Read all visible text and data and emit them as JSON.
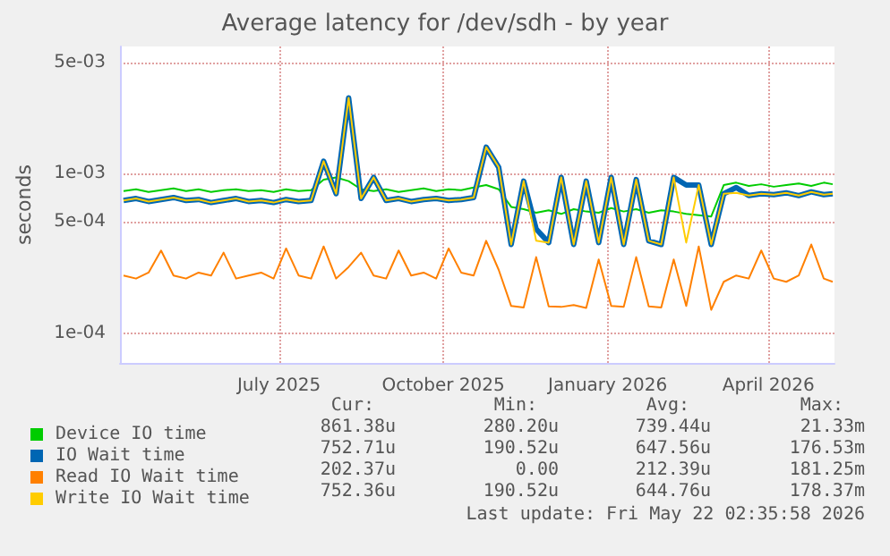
{
  "chart_data": {
    "type": "line",
    "title": "Average latency for /dev/sdh - by year",
    "ylabel": "seconds",
    "log": "y",
    "grid": true,
    "legend": "bottom left",
    "marker": "none",
    "line_style": "solid",
    "xlim": [
      "2025-04-17",
      "2026-05-22"
    ],
    "xticks": [
      {
        "value": "2025-07-15",
        "label": "July 2025"
      },
      {
        "value": "2025-10-15",
        "label": "October 2025"
      },
      {
        "value": "2026-01-15",
        "label": "January 2026"
      },
      {
        "value": "2026-04-15",
        "label": "April 2026"
      }
    ],
    "ylim": [
      6.5e-05,
      0.0063
    ],
    "yticks": [
      {
        "value": 0.0001,
        "label": "1e-04"
      },
      {
        "value": 0.0005,
        "label": "5e-04"
      },
      {
        "value": 0.001,
        "label": "1e-03"
      },
      {
        "value": 0.005,
        "label": "5e-03"
      }
    ],
    "x": [
      "2025-04-19",
      "2025-04-26",
      "2025-05-03",
      "2025-05-10",
      "2025-05-17",
      "2025-05-24",
      "2025-05-31",
      "2025-06-07",
      "2025-06-14",
      "2025-06-21",
      "2025-06-28",
      "2025-07-05",
      "2025-07-12",
      "2025-07-19",
      "2025-07-26",
      "2025-08-02",
      "2025-08-09",
      "2025-08-16",
      "2025-08-23",
      "2025-08-30",
      "2025-09-06",
      "2025-09-13",
      "2025-09-20",
      "2025-09-27",
      "2025-10-04",
      "2025-10-11",
      "2025-10-18",
      "2025-10-25",
      "2025-11-01",
      "2025-11-08",
      "2025-11-15",
      "2025-11-22",
      "2025-11-29",
      "2025-12-06",
      "2025-12-13",
      "2025-12-20",
      "2025-12-27",
      "2026-01-03",
      "2026-01-10",
      "2026-01-17",
      "2026-01-24",
      "2026-01-31",
      "2026-02-07",
      "2026-02-14",
      "2026-02-21",
      "2026-02-28",
      "2026-03-07",
      "2026-03-14",
      "2026-03-21",
      "2026-03-28",
      "2026-04-04",
      "2026-04-11",
      "2026-04-18",
      "2026-04-25",
      "2026-05-02",
      "2026-05-09",
      "2026-05-16",
      "2026-05-21"
    ],
    "series": [
      {
        "name": "Device IO time",
        "color": "#00cc00",
        "values": [
          0.00078,
          0.0008,
          0.00077,
          0.00079,
          0.00081,
          0.00078,
          0.0008,
          0.00077,
          0.00079,
          0.0008,
          0.00078,
          0.00079,
          0.00077,
          0.0008,
          0.00078,
          0.00079,
          0.00092,
          0.00095,
          0.0009,
          0.0008,
          0.00078,
          0.0008,
          0.00077,
          0.00079,
          0.00081,
          0.00078,
          0.0008,
          0.00079,
          0.00082,
          0.00085,
          0.0008,
          0.00062,
          0.0006,
          0.00057,
          0.00059,
          0.00056,
          0.0006,
          0.00058,
          0.00057,
          0.00061,
          0.00058,
          0.0006,
          0.00057,
          0.00059,
          0.00058,
          0.00056,
          0.00055,
          0.00054,
          0.00085,
          0.00088,
          0.00084,
          0.00086,
          0.00083,
          0.00085,
          0.00087,
          0.00084,
          0.00088,
          0.00086
        ]
      },
      {
        "name": "IO Wait time",
        "color": "#0066b3",
        "values": [
          0.00068,
          0.0007,
          0.00067,
          0.00069,
          0.00071,
          0.00068,
          0.00069,
          0.00066,
          0.00068,
          0.0007,
          0.00067,
          0.00068,
          0.00066,
          0.00069,
          0.00067,
          0.00068,
          0.0012,
          0.00075,
          0.003,
          0.0007,
          0.00095,
          0.00068,
          0.0007,
          0.00067,
          0.00069,
          0.0007,
          0.00068,
          0.00069,
          0.00071,
          0.00147,
          0.0011,
          0.00036,
          0.0009,
          0.00045,
          0.00037,
          0.00095,
          0.00036,
          0.0009,
          0.00037,
          0.00095,
          0.00036,
          0.00092,
          0.00038,
          0.00036,
          0.00095,
          0.00085,
          0.00085,
          0.00036,
          0.00075,
          0.00082,
          0.00073,
          0.00075,
          0.00074,
          0.00076,
          0.00073,
          0.00077,
          0.00074,
          0.00075
        ]
      },
      {
        "name": "Read IO Wait time",
        "color": "#ff8000",
        "values": [
          0.00023,
          0.00022,
          0.00024,
          0.00033,
          0.00023,
          0.00022,
          0.00024,
          0.00023,
          0.00032,
          0.00022,
          0.00023,
          0.00024,
          0.00022,
          0.00034,
          0.00023,
          0.00022,
          0.00035,
          0.00022,
          0.00026,
          0.00032,
          0.00023,
          0.00022,
          0.00033,
          0.00023,
          0.00024,
          0.00022,
          0.00034,
          0.00024,
          0.00023,
          0.00038,
          0.00025,
          0.000148,
          0.000145,
          0.0003,
          0.000147,
          0.000146,
          0.00015,
          0.000144,
          0.00029,
          0.000148,
          0.000146,
          0.0003,
          0.000147,
          0.000145,
          0.00029,
          0.000148,
          0.00035,
          0.00014,
          0.00021,
          0.00023,
          0.00022,
          0.00033,
          0.00022,
          0.00021,
          0.00023,
          0.00036,
          0.00022,
          0.00021
        ]
      },
      {
        "name": "Write IO Wait time",
        "color": "#ffcc00",
        "values": [
          0.00068,
          0.0007,
          0.00067,
          0.00069,
          0.00071,
          0.00068,
          0.00069,
          0.00066,
          0.00068,
          0.0007,
          0.00067,
          0.00068,
          0.00066,
          0.00069,
          0.00067,
          0.00068,
          0.0012,
          0.00075,
          0.003,
          0.0007,
          0.00095,
          0.00068,
          0.0007,
          0.00067,
          0.00069,
          0.0007,
          0.00068,
          0.00069,
          0.00071,
          0.00147,
          0.0011,
          0.00036,
          0.0009,
          0.00038,
          0.00037,
          0.00095,
          0.00036,
          0.0009,
          0.00037,
          0.00095,
          0.00036,
          0.00092,
          0.00038,
          0.00036,
          0.00095,
          0.00037,
          0.00085,
          0.00036,
          0.00075,
          0.00076,
          0.00073,
          0.00075,
          0.00074,
          0.00076,
          0.00073,
          0.00077,
          0.00074,
          0.00075
        ]
      }
    ],
    "annotations": [
      "Cur:",
      "Min:",
      "Avg:",
      "Max:",
      "861.38u",
      "280.20u",
      "739.44u",
      "21.33m",
      "752.71u",
      "190.52u",
      "647.56u",
      "176.53m",
      "202.37u",
      "0.00",
      "212.39u",
      "181.25m",
      "752.36u",
      "190.52u",
      "644.76u",
      "178.37m",
      "Last update: Fri May 22 02:35:58 2026"
    ]
  }
}
